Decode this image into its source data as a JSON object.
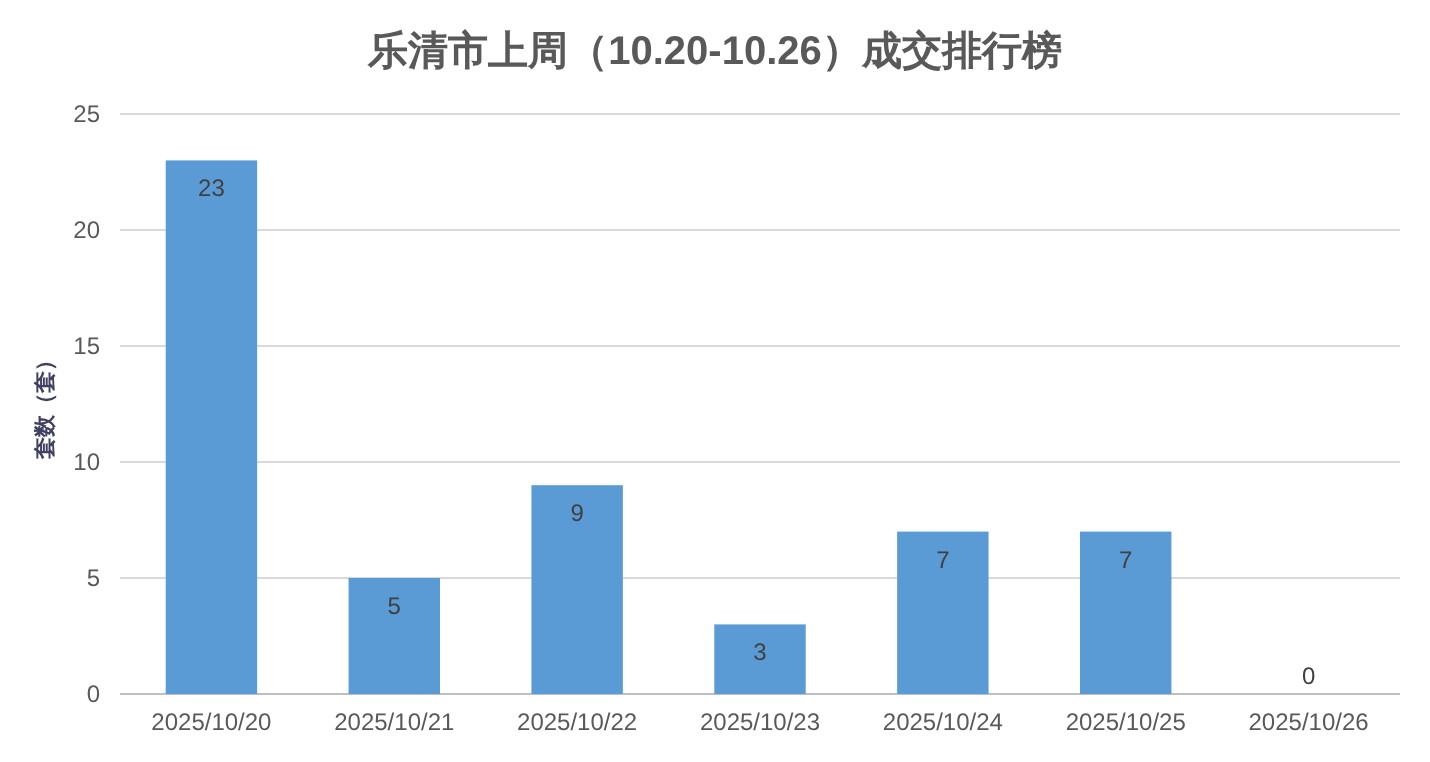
{
  "chart_data": {
    "type": "bar",
    "title": "乐清市上周（10.20-10.26）成交排行榜",
    "ylabel": "套数（套）",
    "categories": [
      "2025/10/20",
      "2025/10/21",
      "2025/10/22",
      "2025/10/23",
      "2025/10/24",
      "2025/10/25",
      "2025/10/26"
    ],
    "values": [
      23,
      5,
      9,
      3,
      7,
      7,
      0
    ],
    "color": "#5b9bd5",
    "ylim": [
      0,
      25
    ],
    "yticks": [
      0,
      5,
      10,
      15,
      20,
      25
    ],
    "grid": "y",
    "data_labels": true
  }
}
